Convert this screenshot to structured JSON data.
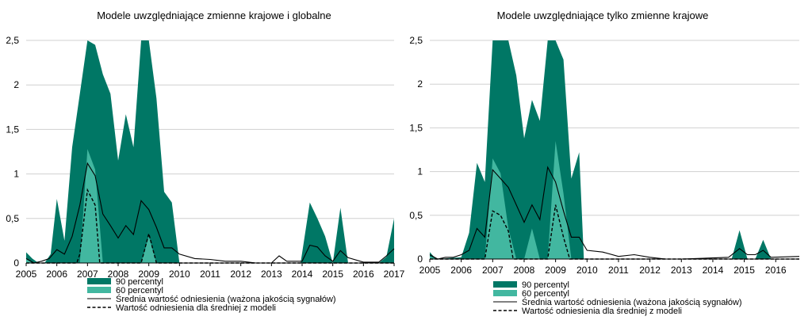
{
  "colors": {
    "p90": "#007765",
    "p60": "#42b7a0",
    "mean_line": "#000000",
    "ref_line": "#000000",
    "grid": "#d0d0d0"
  },
  "chart_data": [
    {
      "type": "area",
      "title": "Modele uwzględniające zmienne krajowe i globalne",
      "ylim": [
        0,
        2.5
      ],
      "yticks": [
        "0",
        "0,5",
        "1",
        "1,5",
        "2",
        "2,5"
      ],
      "xlim": [
        2005,
        2017
      ],
      "xticks": [
        "2005",
        "2006",
        "2007",
        "2008",
        "2009",
        "2010",
        "2011",
        "2012",
        "2013",
        "2014",
        "2015",
        "2016",
        "2017"
      ],
      "legend": [
        "90 percentyl",
        "60 percentyl",
        "Średnia wartość odniesienia (ważona jakością sygnałów)",
        "Wartość odniesienia dla średniej z modeli"
      ],
      "series": [
        {
          "name": "90 percentyl",
          "points": [
            [
              2005.0,
              0.12
            ],
            [
              2005.2,
              0.05
            ],
            [
              2005.4,
              0.0
            ],
            [
              2005.6,
              0.0
            ],
            [
              2005.8,
              0.1
            ],
            [
              2006.0,
              0.72
            ],
            [
              2006.25,
              0.25
            ],
            [
              2006.5,
              1.3
            ],
            [
              2006.75,
              1.9
            ],
            [
              2007.0,
              2.5
            ],
            [
              2007.25,
              2.45
            ],
            [
              2007.5,
              2.12
            ],
            [
              2007.75,
              1.9
            ],
            [
              2008.0,
              1.15
            ],
            [
              2008.25,
              1.67
            ],
            [
              2008.5,
              1.3
            ],
            [
              2008.75,
              2.5
            ],
            [
              2009.0,
              2.5
            ],
            [
              2009.25,
              1.85
            ],
            [
              2009.5,
              0.8
            ],
            [
              2009.75,
              0.68
            ],
            [
              2010.0,
              0.0
            ],
            [
              2013.95,
              0.0
            ],
            [
              2014.25,
              0.68
            ],
            [
              2014.5,
              0.5
            ],
            [
              2014.75,
              0.3
            ],
            [
              2015.0,
              0.0
            ],
            [
              2015.25,
              0.62
            ],
            [
              2015.5,
              0.0
            ],
            [
              2016.5,
              0.0
            ],
            [
              2016.75,
              0.07
            ],
            [
              2017.0,
              0.5
            ],
            [
              2017.0,
              0.0
            ]
          ]
        },
        {
          "name": "60 percentyl",
          "points": [
            [
              2005.0,
              0.05
            ],
            [
              2005.2,
              0.0
            ],
            [
              2006.75,
              0.0
            ],
            [
              2007.0,
              1.28
            ],
            [
              2007.25,
              1.05
            ],
            [
              2007.5,
              0.0
            ],
            [
              2008.75,
              0.0
            ],
            [
              2009.0,
              0.3
            ],
            [
              2009.25,
              0.0
            ],
            [
              2017.0,
              0.0
            ]
          ]
        },
        {
          "name": "Średnia wartość odniesienia (ważona jakością sygnałów)",
          "points": [
            [
              2005.0,
              0.05
            ],
            [
              2005.25,
              0.0
            ],
            [
              2005.5,
              0.02
            ],
            [
              2005.75,
              0.05
            ],
            [
              2006.0,
              0.15
            ],
            [
              2006.25,
              0.1
            ],
            [
              2006.5,
              0.3
            ],
            [
              2006.75,
              0.65
            ],
            [
              2007.0,
              1.12
            ],
            [
              2007.25,
              0.98
            ],
            [
              2007.5,
              0.55
            ],
            [
              2007.75,
              0.42
            ],
            [
              2008.0,
              0.28
            ],
            [
              2008.25,
              0.42
            ],
            [
              2008.5,
              0.32
            ],
            [
              2008.75,
              0.7
            ],
            [
              2009.0,
              0.6
            ],
            [
              2009.25,
              0.4
            ],
            [
              2009.5,
              0.17
            ],
            [
              2009.75,
              0.17
            ],
            [
              2010.0,
              0.1
            ],
            [
              2010.5,
              0.05
            ],
            [
              2011.0,
              0.04
            ],
            [
              2011.5,
              0.02
            ],
            [
              2012.0,
              0.02
            ],
            [
              2012.5,
              0.0
            ],
            [
              2013.0,
              0.0
            ],
            [
              2013.25,
              0.08
            ],
            [
              2013.5,
              0.02
            ],
            [
              2014.0,
              0.02
            ],
            [
              2014.25,
              0.2
            ],
            [
              2014.5,
              0.18
            ],
            [
              2014.75,
              0.08
            ],
            [
              2015.0,
              0.02
            ],
            [
              2015.25,
              0.14
            ],
            [
              2015.5,
              0.06
            ],
            [
              2016.0,
              0.01
            ],
            [
              2016.5,
              0.01
            ],
            [
              2016.75,
              0.08
            ],
            [
              2017.0,
              0.16
            ]
          ]
        },
        {
          "name": "Wartość odniesienia dla średniej z modeli",
          "points": [
            [
              2005.0,
              0.0
            ],
            [
              2006.65,
              0.0
            ],
            [
              2006.75,
              0.1
            ],
            [
              2007.0,
              0.82
            ],
            [
              2007.25,
              0.65
            ],
            [
              2007.4,
              0.0
            ],
            [
              2008.75,
              0.0
            ],
            [
              2009.0,
              0.33
            ],
            [
              2009.25,
              0.0
            ],
            [
              2017.0,
              0.0
            ]
          ]
        }
      ]
    },
    {
      "type": "area",
      "title": "Modele uwzględniające tylko zmienne krajowe",
      "ylim": [
        0,
        2.5
      ],
      "yticks": [
        "0",
        "0,5",
        "1",
        "1,5",
        "2",
        "2,5"
      ],
      "xlim": [
        2005,
        2016.75
      ],
      "xticks": [
        "2005",
        "2006",
        "2007",
        "2008",
        "2009",
        "2010",
        "2011",
        "2012",
        "2013",
        "2014",
        "2015",
        "2016"
      ],
      "legend": [
        "90 percentyl",
        "60 percentyl",
        "Średnia wartość odniesienia (ważona jakością sygnałów)",
        "Wartość odniesienia dla średniej z modeli"
      ],
      "series": [
        {
          "name": "90 percentyl",
          "points": [
            [
              2005.0,
              0.08
            ],
            [
              2005.2,
              0.0
            ],
            [
              2006.0,
              0.02
            ],
            [
              2006.25,
              0.3
            ],
            [
              2006.5,
              1.1
            ],
            [
              2006.75,
              0.88
            ],
            [
              2007.0,
              2.5
            ],
            [
              2007.25,
              2.5
            ],
            [
              2007.5,
              2.5
            ],
            [
              2007.75,
              2.1
            ],
            [
              2008.0,
              1.38
            ],
            [
              2008.25,
              1.82
            ],
            [
              2008.5,
              1.58
            ],
            [
              2008.75,
              2.5
            ],
            [
              2009.0,
              2.5
            ],
            [
              2009.25,
              2.28
            ],
            [
              2009.5,
              0.92
            ],
            [
              2009.75,
              1.22
            ],
            [
              2009.9,
              0.0
            ],
            [
              2014.6,
              0.0
            ],
            [
              2014.85,
              0.33
            ],
            [
              2015.1,
              0.0
            ],
            [
              2015.35,
              0.0
            ],
            [
              2015.6,
              0.22
            ],
            [
              2015.85,
              0.0
            ],
            [
              2016.75,
              0.0
            ]
          ]
        },
        {
          "name": "60 percentyl",
          "points": [
            [
              2005.0,
              0.03
            ],
            [
              2005.2,
              0.0
            ],
            [
              2006.75,
              0.0
            ],
            [
              2007.0,
              1.15
            ],
            [
              2007.25,
              0.98
            ],
            [
              2007.5,
              0.35
            ],
            [
              2007.75,
              0.0
            ],
            [
              2008.0,
              0.0
            ],
            [
              2008.25,
              0.35
            ],
            [
              2008.5,
              0.0
            ],
            [
              2008.75,
              0.0
            ],
            [
              2009.0,
              1.35
            ],
            [
              2009.25,
              0.75
            ],
            [
              2009.5,
              0.0
            ],
            [
              2016.75,
              0.0
            ]
          ]
        },
        {
          "name": "Średnia wartość odniesienia (ważona jakością sygnałów)",
          "points": [
            [
              2005.0,
              0.05
            ],
            [
              2005.25,
              0.0
            ],
            [
              2005.5,
              0.02
            ],
            [
              2005.75,
              0.02
            ],
            [
              2006.0,
              0.05
            ],
            [
              2006.25,
              0.1
            ],
            [
              2006.5,
              0.35
            ],
            [
              2006.75,
              0.25
            ],
            [
              2007.0,
              1.02
            ],
            [
              2007.25,
              0.92
            ],
            [
              2007.5,
              0.82
            ],
            [
              2007.75,
              0.62
            ],
            [
              2008.0,
              0.42
            ],
            [
              2008.25,
              0.62
            ],
            [
              2008.5,
              0.45
            ],
            [
              2008.75,
              1.05
            ],
            [
              2009.0,
              0.88
            ],
            [
              2009.25,
              0.55
            ],
            [
              2009.5,
              0.25
            ],
            [
              2009.75,
              0.25
            ],
            [
              2010.0,
              0.1
            ],
            [
              2010.5,
              0.08
            ],
            [
              2011.0,
              0.03
            ],
            [
              2011.5,
              0.05
            ],
            [
              2012.0,
              0.02
            ],
            [
              2012.5,
              0.0
            ],
            [
              2013.0,
              0.0
            ],
            [
              2014.5,
              0.02
            ],
            [
              2014.85,
              0.12
            ],
            [
              2015.1,
              0.05
            ],
            [
              2015.35,
              0.05
            ],
            [
              2015.6,
              0.1
            ],
            [
              2015.85,
              0.02
            ],
            [
              2016.75,
              0.03
            ]
          ]
        },
        {
          "name": "Wartość odniesienia dla średniej z modeli",
          "points": [
            [
              2005.0,
              0.0
            ],
            [
              2006.75,
              0.0
            ],
            [
              2007.0,
              0.55
            ],
            [
              2007.25,
              0.5
            ],
            [
              2007.5,
              0.32
            ],
            [
              2007.65,
              0.0
            ],
            [
              2008.75,
              0.0
            ],
            [
              2009.0,
              0.62
            ],
            [
              2009.25,
              0.25
            ],
            [
              2009.45,
              0.0
            ],
            [
              2016.75,
              0.0
            ]
          ]
        }
      ]
    }
  ]
}
